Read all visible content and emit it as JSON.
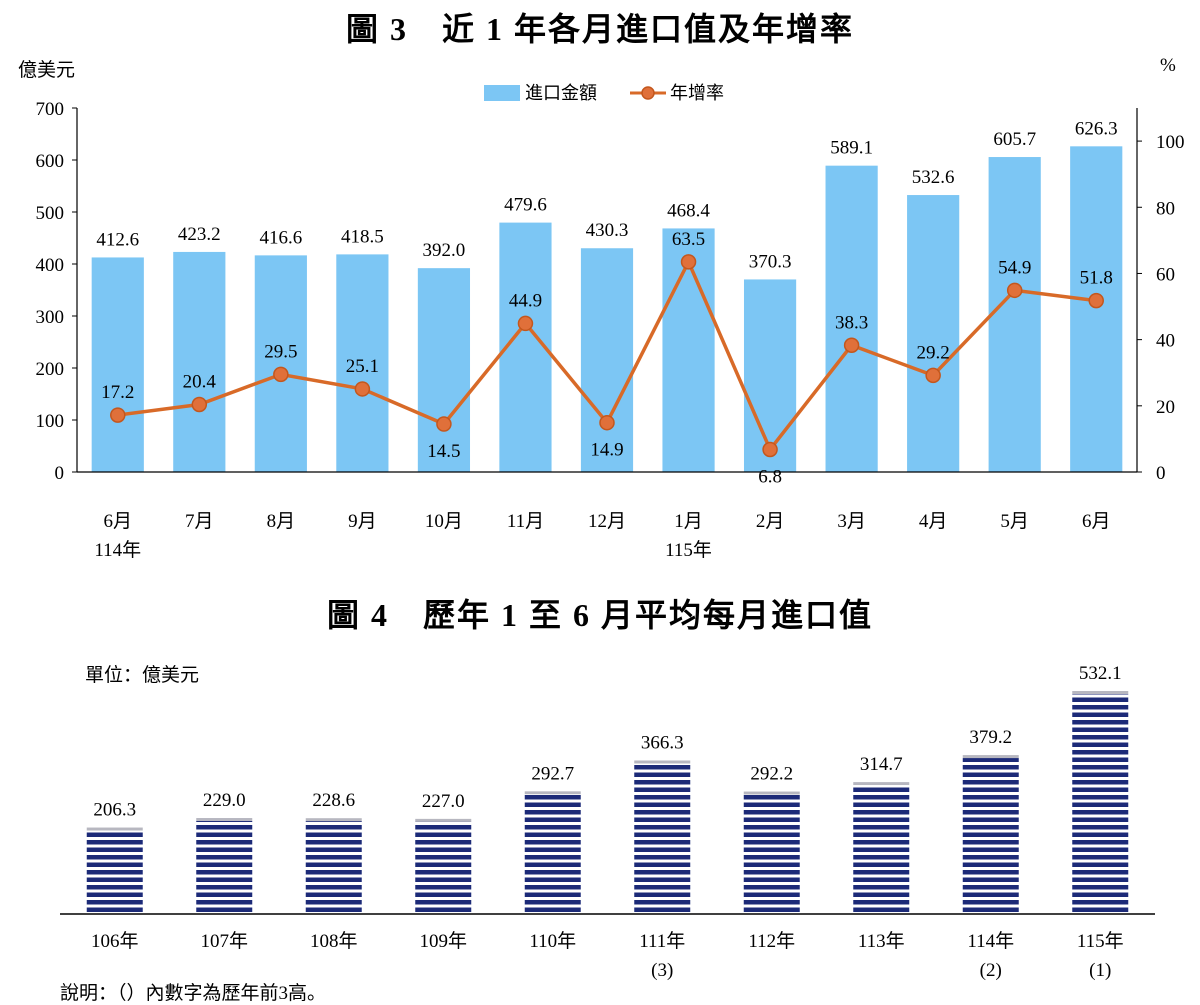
{
  "figure3": {
    "title": "圖 3　近 1 年各月進口值及年增率",
    "left_unit": "億美元",
    "right_unit": "%",
    "legend": {
      "bar": "進口金額",
      "line": "年增率"
    }
  },
  "figure4": {
    "title": "圖 4　歷年 1 至 6 月平均每月進口值",
    "unit_label": "單位：億美元",
    "note": "說明：（）內數字為歷年前3高。"
  },
  "colors": {
    "bar3": "#7cc6f4",
    "line3": "#d86a28",
    "marker3": "#e0703a",
    "bar4": "#1c2a78",
    "axis": "#000000"
  },
  "chart_data": [
    {
      "type": "bar",
      "title": "圖 3　近 1 年各月進口值及年增率",
      "categories": [
        "6月",
        "7月",
        "8月",
        "9月",
        "10月",
        "11月",
        "12月",
        "1月",
        "2月",
        "3月",
        "4月",
        "5月",
        "6月"
      ],
      "category_sublabels": [
        "114年",
        "",
        "",
        "",
        "",
        "",
        "",
        "115年",
        "",
        "",
        "",
        "",
        ""
      ],
      "ylabel": "億美元",
      "y2label": "%",
      "ylim": [
        0,
        700
      ],
      "y2lim": [
        0,
        110
      ],
      "yticks": [
        0,
        100,
        200,
        300,
        400,
        500,
        600,
        700
      ],
      "y2ticks": [
        0,
        20,
        40,
        60,
        80,
        100
      ],
      "legend_position": "top-center",
      "series": [
        {
          "name": "進口金額",
          "type": "bar",
          "axis": "left",
          "values": [
            412.6,
            423.2,
            416.6,
            418.5,
            392.0,
            479.6,
            430.3,
            468.4,
            370.3,
            589.1,
            532.6,
            605.7,
            626.3
          ],
          "labels": [
            "412.6",
            "423.2",
            "416.6",
            "418.5",
            "392.0",
            "479.6",
            "430.3",
            "468.4",
            "370.3",
            "589.1",
            "532.6",
            "605.7",
            "626.3"
          ]
        },
        {
          "name": "年增率",
          "type": "line",
          "axis": "right",
          "values": [
            17.2,
            20.4,
            29.5,
            25.1,
            14.5,
            44.9,
            14.9,
            63.5,
            6.8,
            38.3,
            29.2,
            54.9,
            51.8
          ],
          "labels": [
            "17.2",
            "20.4",
            "29.5",
            "25.1",
            "14.5",
            "44.9",
            "14.9",
            "63.5",
            "6.8",
            "38.3",
            "29.2",
            "54.9",
            "51.8"
          ],
          "label_placement": [
            "above",
            "above",
            "above",
            "above",
            "below",
            "above",
            "below",
            "above",
            "below",
            "above",
            "above",
            "above",
            "above"
          ]
        }
      ]
    },
    {
      "type": "bar",
      "title": "圖 4　歷年 1 至 6 月平均每月進口值",
      "categories": [
        "106年",
        "107年",
        "108年",
        "109年",
        "110年",
        "111年",
        "112年",
        "113年",
        "114年",
        "115年"
      ],
      "category_sublabels": [
        "",
        "",
        "",
        "",
        "",
        "(3)",
        "",
        "",
        "(2)",
        "(1)"
      ],
      "ylabel": "單位：億美元",
      "ylim": [
        0,
        560
      ],
      "series": [
        {
          "values": [
            206.3,
            229.0,
            228.6,
            227.0,
            292.7,
            366.3,
            292.2,
            314.7,
            379.2,
            532.1
          ],
          "labels": [
            "206.3",
            "229.0",
            "228.6",
            "227.0",
            "292.7",
            "366.3",
            "292.2",
            "314.7",
            "379.2",
            "532.1"
          ]
        }
      ]
    }
  ]
}
